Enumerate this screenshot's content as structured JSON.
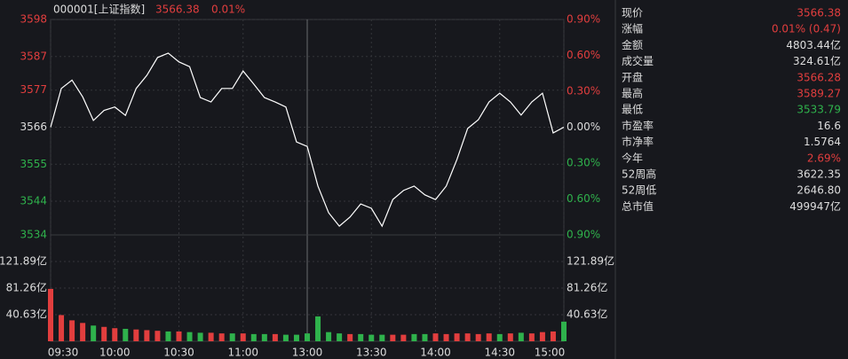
{
  "header": {
    "code": "000001[上证指数]",
    "price": "3566.38",
    "change": "0.01%"
  },
  "chart_data": [
    {
      "type": "line",
      "x": [
        "09:30",
        "09:35",
        "09:40",
        "09:45",
        "09:50",
        "09:55",
        "10:00",
        "10:05",
        "10:10",
        "10:15",
        "10:20",
        "10:25",
        "10:30",
        "10:35",
        "10:40",
        "10:45",
        "10:50",
        "10:55",
        "11:00",
        "11:05",
        "11:10",
        "11:15",
        "11:20",
        "11:25",
        "11:30",
        "13:05",
        "13:10",
        "13:15",
        "13:20",
        "13:25",
        "13:30",
        "13:35",
        "13:40",
        "13:45",
        "13:50",
        "13:55",
        "14:00",
        "14:05",
        "14:10",
        "14:15",
        "14:20",
        "14:25",
        "14:30",
        "14:35",
        "14:40",
        "14:45",
        "14:50",
        "14:55",
        "15:00"
      ],
      "series": [
        {
          "color": "#ffffff",
          "values": [
            3566,
            3577.5,
            3580,
            3575,
            3568,
            3571,
            3572,
            3569.5,
            3577.5,
            3581.4,
            3586.7,
            3588,
            3585.4,
            3584,
            3574.8,
            3573.5,
            3577.5,
            3577.5,
            3582.7,
            3578.8,
            3574.8,
            3573.5,
            3572,
            3561.6,
            3560.3,
            3548.5,
            3540.6,
            3536.6,
            3539.3,
            3543.2,
            3541.9,
            3536.6,
            3544.5,
            3547.2,
            3548.5,
            3545.9,
            3544.5,
            3548.5,
            3556.4,
            3565.6,
            3568.2,
            3573.5,
            3576.1,
            3573.5,
            3569.6,
            3573.5,
            3576.1,
            3564.3,
            3566
          ]
        }
      ],
      "ylim": [
        3534,
        3598
      ],
      "yticks": [
        3534,
        3544,
        3555,
        3566,
        3577,
        3587,
        3598
      ],
      "y2lim": [
        -0.9,
        0.9
      ],
      "y2ticks": [
        {
          "value": -0.9,
          "label": "0.90%"
        },
        {
          "value": -0.6,
          "label": "0.60%"
        },
        {
          "value": -0.3,
          "label": "0.30%"
        },
        {
          "value": 0,
          "label": "0.00%"
        },
        {
          "value": 0.3,
          "label": "0.30%"
        },
        {
          "value": 0.6,
          "label": "0.60%"
        },
        {
          "value": 0.9,
          "label": "0.90%"
        }
      ],
      "xticks": [
        "09:30",
        "10:00",
        "10:30",
        "11:00",
        "13:00",
        "13:30",
        "14:00",
        "14:30",
        "15:00"
      ],
      "grid": true
    },
    {
      "type": "bar",
      "values": [
        80,
        40,
        32,
        28,
        24,
        22,
        20,
        19,
        18,
        17,
        16,
        15,
        15,
        14,
        13,
        13,
        12,
        12,
        12,
        11,
        11,
        11,
        10,
        10,
        12,
        38,
        14,
        12,
        11,
        11,
        10,
        10,
        10,
        10,
        11,
        11,
        12,
        11,
        12,
        12,
        11,
        12,
        11,
        12,
        13,
        12,
        14,
        15,
        30
      ],
      "colors": [
        "#e23e3e",
        "#e23e3e",
        "#e23e3e",
        "#e23e3e",
        "#2fb24c",
        "#e23e3e",
        "#e23e3e",
        "#2fb24c",
        "#e23e3e",
        "#e23e3e",
        "#e23e3e",
        "#2fb24c",
        "#e23e3e",
        "#2fb24c",
        "#2fb24c",
        "#e23e3e",
        "#e23e3e",
        "#2fb24c",
        "#e23e3e",
        "#2fb24c",
        "#2fb24c",
        "#e23e3e",
        "#2fb24c",
        "#2fb24c",
        "#2fb24c",
        "#2fb24c",
        "#2fb24c",
        "#2fb24c",
        "#e23e3e",
        "#2fb24c",
        "#2fb24c",
        "#2fb24c",
        "#e23e3e",
        "#e23e3e",
        "#2fb24c",
        "#2fb24c",
        "#e23e3e",
        "#e23e3e",
        "#e23e3e",
        "#e23e3e",
        "#e23e3e",
        "#e23e3e",
        "#2fb24c",
        "#e23e3e",
        "#2fb24c",
        "#e23e3e",
        "#e23e3e",
        "#e23e3e",
        "#2fb24c"
      ],
      "ylim": [
        0,
        162.52
      ],
      "yticks": [
        {
          "value": 40.63,
          "label": "40.63亿"
        },
        {
          "value": 81.26,
          "label": "81.26亿"
        },
        {
          "value": 121.89,
          "label": "121.89亿"
        }
      ]
    }
  ],
  "info": [
    {
      "label": "现价",
      "value": "3566.38",
      "color": "#e23e3e"
    },
    {
      "label": "涨幅",
      "value": "0.01% (0.47)",
      "color": "#e23e3e"
    },
    {
      "label": "金额",
      "value": "4803.44亿",
      "color": "#dddddd"
    },
    {
      "label": "成交量",
      "value": "324.61亿",
      "color": "#dddddd"
    },
    {
      "label": "开盘",
      "value": "3566.28",
      "color": "#e23e3e"
    },
    {
      "label": "最高",
      "value": "3589.27",
      "color": "#e23e3e"
    },
    {
      "label": "最低",
      "value": "3533.79",
      "color": "#2fb24c"
    },
    {
      "label": "市盈率",
      "value": "16.6",
      "color": "#dddddd"
    },
    {
      "label": "市净率",
      "value": "1.5764",
      "color": "#dddddd"
    },
    {
      "label": "今年",
      "value": "2.69%",
      "color": "#e23e3e"
    },
    {
      "label": "52周高",
      "value": "3622.35",
      "color": "#dddddd"
    },
    {
      "label": "52周低",
      "value": "2646.80",
      "color": "#dddddd"
    },
    {
      "label": "总市值",
      "value": "499947亿",
      "color": "#dddddd"
    }
  ]
}
